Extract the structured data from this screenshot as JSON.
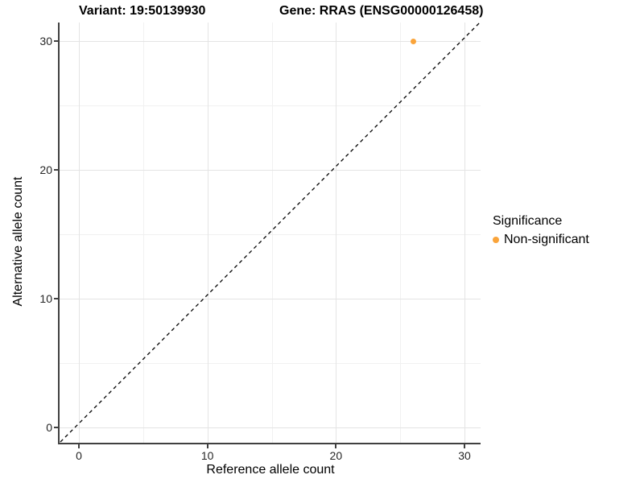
{
  "titles": {
    "variant": "Variant: 19:50139930",
    "gene": "Gene: RRAS (ENSG00000126458)"
  },
  "axes": {
    "x": {
      "label": "Reference allele count",
      "tick_labels": [
        "0",
        "10",
        "20",
        "30"
      ]
    },
    "y": {
      "label": "Alternative allele count",
      "tick_labels": [
        "0",
        "10",
        "20",
        "30"
      ]
    }
  },
  "legend": {
    "title": "Significance",
    "items": [
      {
        "label": "Non-significant",
        "color": "#FAA43A"
      }
    ]
  },
  "chart_data": {
    "type": "scatter",
    "title": "Variant: 19:50139930 — Gene: RRAS (ENSG00000126458)",
    "xlabel": "Reference allele count",
    "ylabel": "Alternative allele count",
    "xlim": [
      -1.7,
      31.3
    ],
    "ylim": [
      -1.7,
      31.4
    ],
    "x_ticks": [
      0,
      10,
      20,
      30
    ],
    "y_ticks": [
      0,
      10,
      20,
      30
    ],
    "minor_x_ticks": [
      5,
      15,
      25
    ],
    "minor_y_ticks": [
      5,
      15,
      25
    ],
    "grid": "major+minor",
    "background": "#ffffff",
    "legend_position": "right",
    "series": [
      {
        "name": "Non-significant",
        "color": "#FAA43A",
        "points": [
          [
            26,
            30
          ]
        ]
      }
    ],
    "reference_line": {
      "type": "identity (y = x)",
      "style": "dashed",
      "color": "#000000"
    }
  }
}
